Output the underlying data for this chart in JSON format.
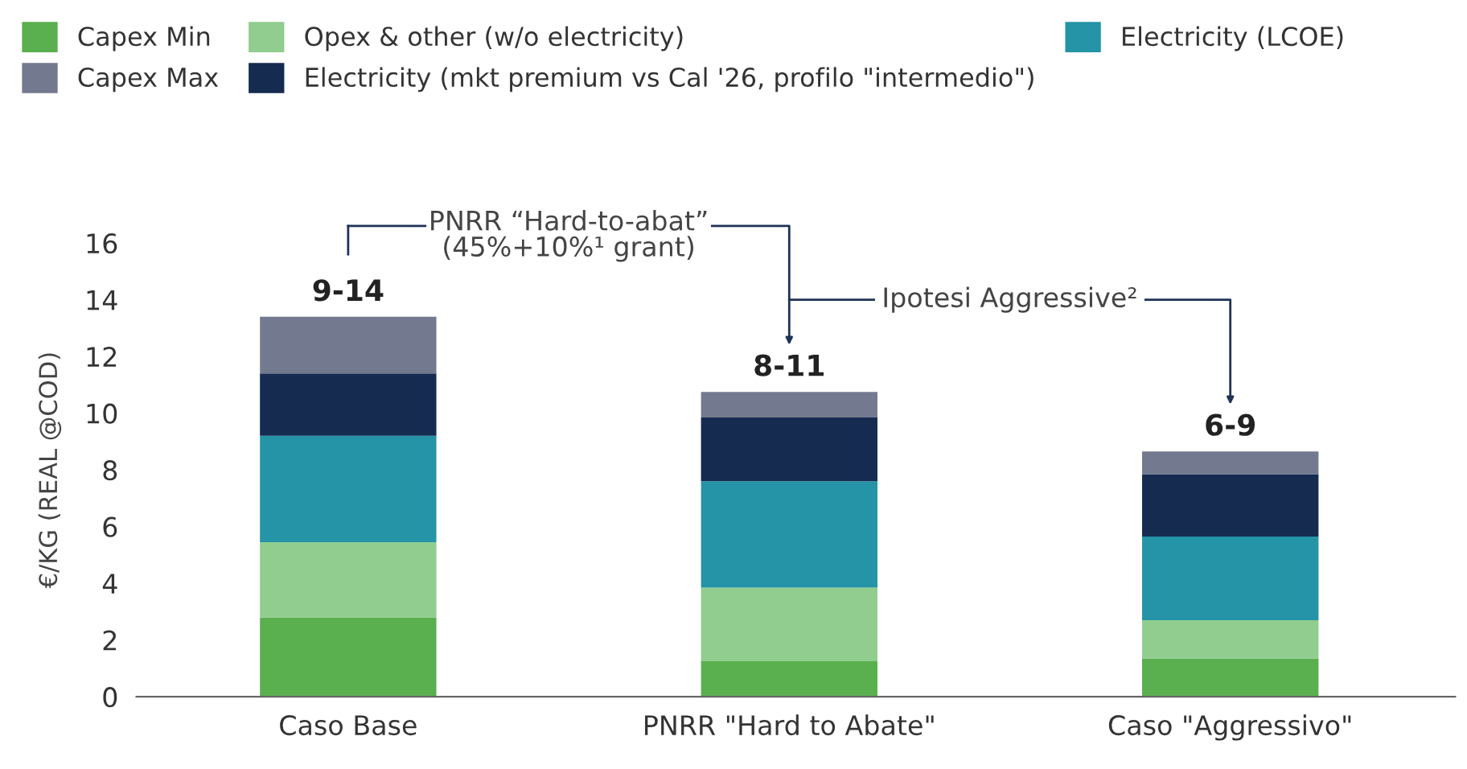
{
  "chart_data": {
    "type": "bar",
    "stacked": true,
    "ylabel": "€/KG (REAL @COD)",
    "categories": [
      "Caso Base",
      "PNRR \"Hard to Abate\"",
      "Caso \"Aggressivo\""
    ],
    "series": [
      {
        "name": "Capex Min",
        "color": "#5aaf4e",
        "values": [
          2.8,
          1.25,
          1.35
        ]
      },
      {
        "name": "Opex & other (w/o electricity)",
        "color": "#90cd8f",
        "values": [
          2.65,
          2.6,
          1.35
        ]
      },
      {
        "name": "Electricity (LCOE)",
        "color": "#2494a6",
        "values": [
          3.75,
          3.75,
          2.95
        ]
      },
      {
        "name": "Electricity (mkt premium vs Cal '26, profilo \"intermedio\")",
        "color": "#162b50",
        "values": [
          2.2,
          2.25,
          2.2
        ]
      },
      {
        "name": "Capex Max",
        "color": "#737a8f",
        "values": [
          2.0,
          0.9,
          0.8
        ]
      }
    ],
    "totals": [
      "9-14",
      "8-11",
      "6-9"
    ],
    "ylim": [
      0,
      16
    ],
    "yticks": [
      0,
      2,
      4,
      6,
      8,
      10,
      12,
      14,
      16
    ],
    "annotations": [
      "PNRR “Hard-to-abat”\n(45%+10%¹ grant)",
      "Ipotesi Aggressive²"
    ],
    "grid": false,
    "legend": "top"
  }
}
